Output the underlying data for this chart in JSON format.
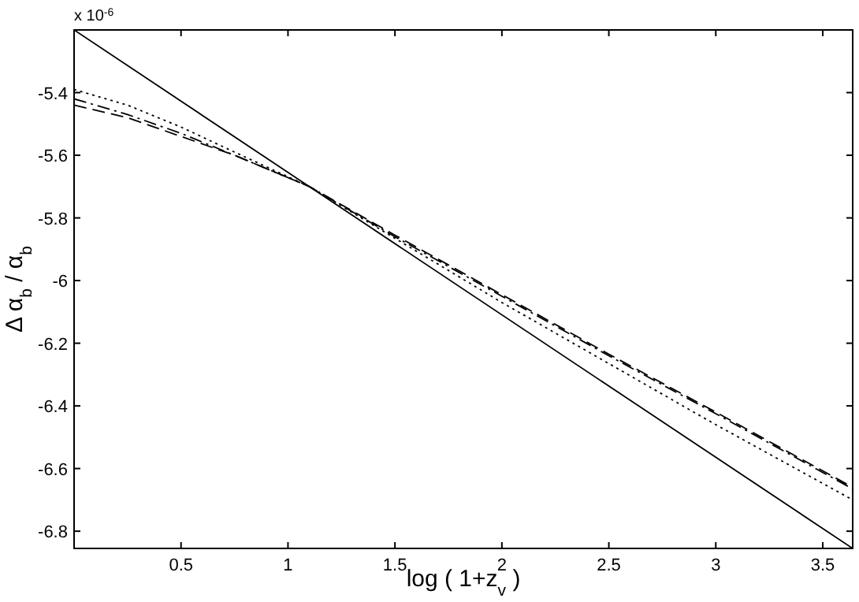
{
  "chart_data": {
    "type": "line",
    "xlabel": "log ( 1+z$_{v}$ )",
    "ylabel": "Δ α$_{b}$ / α$_{b}$",
    "annotations": [
      "x 10$^{-6}$"
    ],
    "xlim": [
      0,
      3.64
    ],
    "ylim": [
      -6.855,
      -5.2
    ],
    "xticks": [
      0.5,
      1,
      1.5,
      2,
      2.5,
      3,
      3.5
    ],
    "yticks": [
      -6.8,
      -6.6,
      -6.4,
      -6.2,
      -6,
      -5.8,
      -5.6,
      -5.4
    ],
    "grid": false,
    "series": [
      {
        "color": "#000000",
        "line_style": "solid",
        "x": [
          0,
          3.64
        ],
        "values": [
          -5.2,
          -6.855
        ]
      },
      {
        "color": "#000000",
        "line_style": "dashed",
        "x": [
          0,
          0.25,
          0.5,
          0.75,
          1.1,
          1.5,
          2,
          2.5,
          3,
          3.64
        ],
        "values": [
          -5.44,
          -5.48,
          -5.54,
          -5.6,
          -5.7,
          -5.855,
          -6.045,
          -6.235,
          -6.42,
          -6.66
        ]
      },
      {
        "color": "#000000",
        "line_style": "dashdot",
        "x": [
          0,
          0.25,
          0.5,
          0.75,
          1.1,
          1.5,
          2,
          2.5,
          3,
          3.64
        ],
        "values": [
          -5.42,
          -5.47,
          -5.53,
          -5.6,
          -5.7,
          -5.86,
          -6.05,
          -6.24,
          -6.425,
          -6.665
        ]
      },
      {
        "color": "#000000",
        "line_style": "dotted",
        "x": [
          0,
          0.25,
          0.5,
          0.75,
          1.1,
          1.5,
          2,
          2.5,
          3,
          3.64
        ],
        "values": [
          -5.39,
          -5.44,
          -5.51,
          -5.59,
          -5.7,
          -5.865,
          -6.07,
          -6.265,
          -6.46,
          -6.7
        ]
      }
    ]
  }
}
